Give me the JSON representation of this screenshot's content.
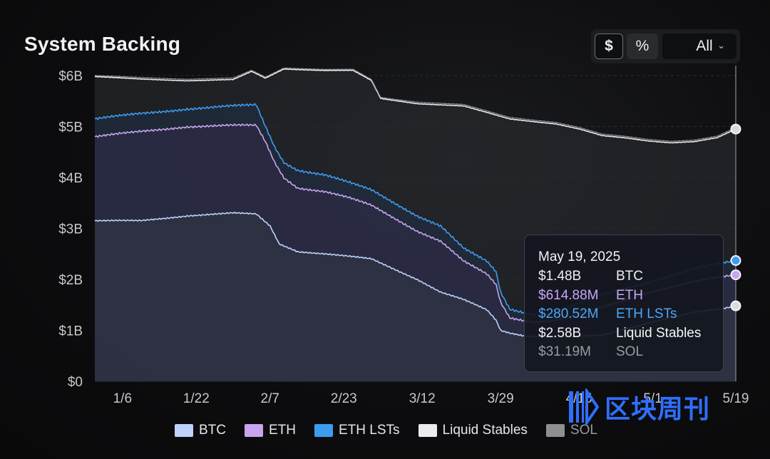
{
  "colors": {
    "btc": "#bdd3fa",
    "eth": "#c9a5f0",
    "eth_lsts": "#3d9cf0",
    "liquid_stables": "#ececf0",
    "sol": "#8e8f93",
    "watermark": "#2f6fff"
  },
  "header": {
    "title": "System Backing"
  },
  "controls": {
    "dollar_label": "$",
    "percent_label": "%",
    "range_label": "All",
    "range_icon": "chevron-down-icon"
  },
  "tooltip": {
    "date": "May 19, 2025",
    "rows": [
      {
        "value": "$1.48B",
        "label": "BTC",
        "color": "#f0f0f2"
      },
      {
        "value": "$614.88M",
        "label": "ETH",
        "color": "#c9a5f0"
      },
      {
        "value": "$280.52M",
        "label": "ETH LSTs",
        "color": "#4ea6f5"
      },
      {
        "value": "$2.58B",
        "label": "Liquid Stables",
        "color": "#f5f5f7"
      },
      {
        "value": "$31.19M",
        "label": "SOL",
        "color": "#9a9ba0"
      }
    ]
  },
  "watermark": {
    "text": "区块周刊",
    "icon": "block-weekly-logo-icon"
  },
  "chart_data": {
    "type": "area",
    "stacked": true,
    "title": "System Backing",
    "y_unit": "$",
    "ylim": [
      0,
      6
    ],
    "y_ticks": [
      {
        "v": 0,
        "label": "$0"
      },
      {
        "v": 1,
        "label": "$1B"
      },
      {
        "v": 2,
        "label": "$2B"
      },
      {
        "v": 3,
        "label": "$3B"
      },
      {
        "v": 4,
        "label": "$4B"
      },
      {
        "v": 5,
        "label": "$5B"
      },
      {
        "v": 6,
        "label": "$6B"
      }
    ],
    "xlim": [
      0,
      139
    ],
    "x_ticks": [
      {
        "d": 6,
        "label": "1/6"
      },
      {
        "d": 22,
        "label": "1/22"
      },
      {
        "d": 38,
        "label": "2/7"
      },
      {
        "d": 54,
        "label": "2/23"
      },
      {
        "d": 71,
        "label": "3/12"
      },
      {
        "d": 88,
        "label": "3/29"
      },
      {
        "d": 105,
        "label": "4/15"
      },
      {
        "d": 121,
        "label": "5/1"
      },
      {
        "d": 139,
        "label": "5/19"
      }
    ],
    "cursor_day": 139,
    "legend": [
      "BTC",
      "ETH",
      "ETH LSTs",
      "Liquid Stables",
      "SOL"
    ],
    "series": [
      {
        "name": "BTC",
        "points": [
          [
            0,
            3.15
          ],
          [
            10,
            3.15
          ],
          [
            20,
            3.25
          ],
          [
            30,
            3.3
          ],
          [
            35,
            3.28
          ],
          [
            38,
            3.05
          ],
          [
            40,
            2.7
          ],
          [
            44,
            2.55
          ],
          [
            50,
            2.5
          ],
          [
            55,
            2.45
          ],
          [
            60,
            2.4
          ],
          [
            65,
            2.2
          ],
          [
            70,
            2.0
          ],
          [
            75,
            1.75
          ],
          [
            80,
            1.6
          ],
          [
            85,
            1.4
          ],
          [
            87,
            1.2
          ],
          [
            88,
            1.0
          ],
          [
            90,
            0.95
          ],
          [
            93,
            0.9
          ],
          [
            100,
            0.86
          ],
          [
            110,
            0.9
          ],
          [
            120,
            1.15
          ],
          [
            130,
            1.35
          ],
          [
            136,
            1.42
          ],
          [
            139,
            1.48
          ]
        ]
      },
      {
        "name": "ETH",
        "points": [
          [
            0,
            4.8
          ],
          [
            10,
            4.9
          ],
          [
            20,
            5.0
          ],
          [
            30,
            5.02
          ],
          [
            35,
            5.02
          ],
          [
            37,
            4.7
          ],
          [
            39,
            4.3
          ],
          [
            41,
            4.0
          ],
          [
            44,
            3.8
          ],
          [
            50,
            3.72
          ],
          [
            55,
            3.6
          ],
          [
            60,
            3.45
          ],
          [
            65,
            3.2
          ],
          [
            70,
            2.95
          ],
          [
            75,
            2.75
          ],
          [
            80,
            2.35
          ],
          [
            85,
            2.1
          ],
          [
            87,
            1.9
          ],
          [
            88,
            1.55
          ],
          [
            90,
            1.25
          ],
          [
            95,
            1.17
          ],
          [
            100,
            1.2
          ],
          [
            110,
            1.45
          ],
          [
            120,
            1.75
          ],
          [
            130,
            1.95
          ],
          [
            136,
            2.05
          ],
          [
            139,
            2.09
          ]
        ]
      },
      {
        "name": "ETH LSTs",
        "points": [
          [
            0,
            5.15
          ],
          [
            10,
            5.25
          ],
          [
            20,
            5.35
          ],
          [
            30,
            5.4
          ],
          [
            35,
            5.42
          ],
          [
            37,
            5.0
          ],
          [
            39,
            4.6
          ],
          [
            41,
            4.3
          ],
          [
            44,
            4.15
          ],
          [
            50,
            4.05
          ],
          [
            55,
            3.9
          ],
          [
            60,
            3.75
          ],
          [
            65,
            3.5
          ],
          [
            70,
            3.25
          ],
          [
            75,
            3.05
          ],
          [
            80,
            2.6
          ],
          [
            85,
            2.35
          ],
          [
            87,
            2.15
          ],
          [
            88,
            1.75
          ],
          [
            90,
            1.42
          ],
          [
            95,
            1.32
          ],
          [
            100,
            1.35
          ],
          [
            110,
            1.7
          ],
          [
            120,
            1.95
          ],
          [
            130,
            2.2
          ],
          [
            136,
            2.32
          ],
          [
            139,
            2.37
          ]
        ]
      },
      {
        "name": "Liquid Stables",
        "points": [
          [
            0,
            5.98
          ],
          [
            10,
            5.93
          ],
          [
            20,
            5.9
          ],
          [
            30,
            5.92
          ],
          [
            34,
            6.08
          ],
          [
            37,
            5.95
          ],
          [
            41,
            6.13
          ],
          [
            50,
            6.1
          ],
          [
            56,
            6.1
          ],
          [
            60,
            5.9
          ],
          [
            62,
            5.55
          ],
          [
            70,
            5.45
          ],
          [
            80,
            5.4
          ],
          [
            90,
            5.15
          ],
          [
            100,
            5.05
          ],
          [
            105,
            4.95
          ],
          [
            110,
            4.82
          ],
          [
            115,
            4.78
          ],
          [
            120,
            4.72
          ],
          [
            125,
            4.68
          ],
          [
            130,
            4.7
          ],
          [
            135,
            4.78
          ],
          [
            139,
            4.95
          ]
        ]
      },
      {
        "name": "SOL",
        "points": [
          [
            0,
            6.0
          ],
          [
            10,
            5.96
          ],
          [
            20,
            5.93
          ],
          [
            30,
            5.95
          ],
          [
            34,
            6.1
          ],
          [
            37,
            5.97
          ],
          [
            41,
            6.15
          ],
          [
            50,
            6.12
          ],
          [
            56,
            6.12
          ],
          [
            60,
            5.92
          ],
          [
            62,
            5.57
          ],
          [
            70,
            5.48
          ],
          [
            80,
            5.43
          ],
          [
            90,
            5.18
          ],
          [
            100,
            5.08
          ],
          [
            105,
            4.98
          ],
          [
            110,
            4.85
          ],
          [
            115,
            4.81
          ],
          [
            120,
            4.75
          ],
          [
            125,
            4.71
          ],
          [
            130,
            4.73
          ],
          [
            135,
            4.81
          ],
          [
            139,
            4.98
          ]
        ]
      }
    ]
  }
}
